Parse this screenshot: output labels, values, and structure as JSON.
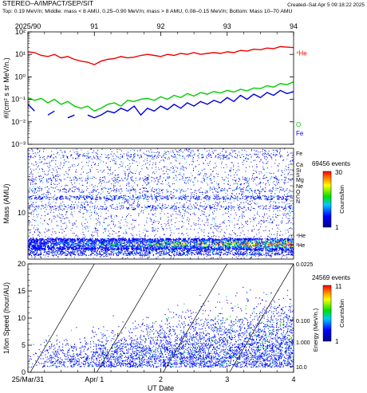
{
  "header": {
    "title": "STEREO–A/IMPACT/SEP/SIT",
    "created": "Created–Sat Apr  5 09:18:22 2025",
    "subtitle": "Top: 0.19 MeV/n; Middle: mass < 8 AMU, 0.25–0.90 MeV/n; mass > 8 AMU, 0.08–0.15 MeV/n; Bottom: Mass 10–70 AMU"
  },
  "top_axis": {
    "labels": [
      "2025/90",
      "91",
      "92",
      "93",
      "94"
    ]
  },
  "colors": {
    "He": "#ee0000",
    "O": "#00cc00",
    "Fe": "#0000dd"
  },
  "chart_data": [
    {
      "type": "line",
      "title": "",
      "ylabel": "#/(cm² s sr MeV/n.)",
      "yscale": "log",
      "ylim": [
        0.001,
        100
      ],
      "y_tick_labels": [
        "10⁻³",
        "10⁻²",
        "10⁻¹",
        "10⁰",
        "10¹",
        "10²"
      ],
      "x": [
        90.0,
        90.1,
        90.2,
        90.3,
        90.4,
        90.5,
        90.6,
        90.7,
        90.8,
        90.9,
        91.0,
        91.1,
        91.2,
        91.3,
        91.4,
        91.5,
        91.6,
        91.7,
        91.8,
        91.9,
        92.0,
        92.1,
        92.2,
        92.3,
        92.4,
        92.5,
        92.6,
        92.7,
        92.8,
        92.9,
        93.0,
        93.1,
        93.2,
        93.3,
        93.4,
        93.5,
        93.6,
        93.7,
        93.8,
        93.9,
        94.0
      ],
      "series": [
        {
          "name": "⁴He",
          "values": [
            13,
            12,
            9,
            8,
            10,
            7,
            8,
            6,
            5,
            4.5,
            3.5,
            5,
            6,
            6.5,
            8,
            7,
            7.5,
            9,
            10,
            9,
            8,
            10,
            9,
            11,
            10,
            12,
            10,
            11,
            12,
            11,
            13,
            12,
            15,
            14,
            17,
            16,
            19,
            18,
            22,
            21,
            20
          ]
        },
        {
          "name": "O",
          "values": [
            0.12,
            0.09,
            0.11,
            0.07,
            0.1,
            0.06,
            0.08,
            0.05,
            0.04,
            0.05,
            0.03,
            0.04,
            0.06,
            0.07,
            0.05,
            0.09,
            0.08,
            0.1,
            0.11,
            0.09,
            0.13,
            0.1,
            0.15,
            0.12,
            0.18,
            0.14,
            0.2,
            0.17,
            0.22,
            0.19,
            0.25,
            0.21,
            0.28,
            0.24,
            0.32,
            0.3,
            0.4,
            0.35,
            0.5,
            0.45,
            0.6
          ]
        },
        {
          "name": "Fe",
          "values": [
            0.06,
            0.03,
            null,
            0.02,
            0.03,
            null,
            0.015,
            0.02,
            null,
            0.02,
            0.015,
            0.02,
            0.03,
            0.025,
            0.04,
            0.03,
            0.05,
            0.02,
            0.04,
            0.03,
            0.05,
            0.035,
            0.06,
            0.04,
            0.07,
            0.05,
            0.08,
            0.06,
            0.09,
            0.07,
            0.12,
            0.08,
            0.15,
            0.1,
            0.17,
            0.12,
            0.2,
            0.15,
            0.25,
            0.18,
            0.22
          ]
        }
      ],
      "series_labels": [
        "⁴He",
        "O",
        "Fe"
      ]
    },
    {
      "type": "heatmap",
      "title": "",
      "ylabel": "Mass (AMU)",
      "yscale": "log",
      "ylim": [
        2.5,
        70
      ],
      "y_tick_labels": [
        "10"
      ],
      "element_labels": [
        "Fe",
        "Ca",
        "Si",
        "S",
        "Mg",
        "Ne",
        "O",
        "C",
        "N",
        "⁴He",
        "³He"
      ],
      "element_masses": [
        56,
        40,
        28,
        32,
        24,
        20,
        16,
        12,
        14,
        4,
        3
      ],
      "colorbar": {
        "title": "69456 events",
        "label": "Counts/bin",
        "min": 1,
        "max": 30
      }
    },
    {
      "type": "scatter",
      "title": "",
      "xlabel": "UT Date",
      "ylabel": "1/Ion Speed (hour/AU)",
      "ylim": [
        0,
        20
      ],
      "y_tick_labels": [
        "0",
        "5",
        "10",
        "15",
        "20"
      ],
      "x_tick_labels": [
        "25/Mar/31",
        "Apr/ 1",
        "2",
        "3",
        "4"
      ],
      "right_axis": {
        "label": "Energy (MeV/n.)",
        "tick_labels": [
          "0.0225",
          "0.100",
          "1.000",
          "10.0"
        ]
      },
      "colorbar": {
        "title": "24569 events",
        "label": "Counts/bin",
        "min": 1,
        "max": 11
      }
    }
  ]
}
